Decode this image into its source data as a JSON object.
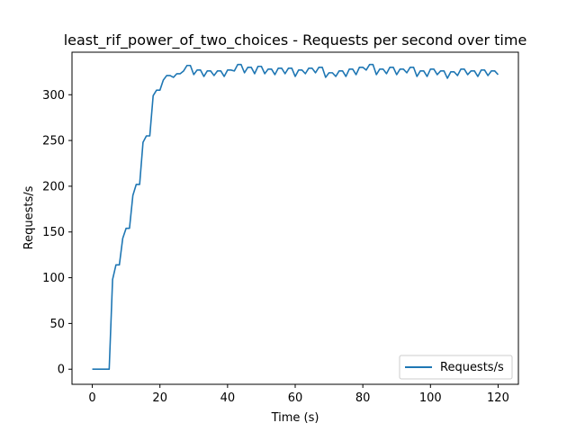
{
  "chart_data": {
    "type": "line",
    "title": "least_rif_power_of_two_choices - Requests per second over time",
    "xlabel": "Time (s)",
    "ylabel": "Requests/s",
    "xlim": [
      -6,
      126
    ],
    "ylim": [
      -16.5,
      346.5
    ],
    "xticks": [
      0,
      20,
      40,
      60,
      80,
      100,
      120
    ],
    "yticks": [
      0,
      50,
      100,
      150,
      200,
      250,
      300
    ],
    "grid": false,
    "legend_position": "lower right",
    "series": [
      {
        "name": "Requests/s",
        "color": "#1f77b4",
        "x": [
          0,
          1,
          2,
          3,
          4,
          5,
          6,
          7,
          8,
          9,
          10,
          11,
          12,
          13,
          14,
          15,
          16,
          17,
          18,
          19,
          20,
          21,
          22,
          23,
          24,
          25,
          26,
          27,
          28,
          29,
          30,
          31,
          32,
          33,
          34,
          35,
          36,
          37,
          38,
          39,
          40,
          41,
          42,
          43,
          44,
          45,
          46,
          47,
          48,
          49,
          50,
          51,
          52,
          53,
          54,
          55,
          56,
          57,
          58,
          59,
          60,
          61,
          62,
          63,
          64,
          65,
          66,
          67,
          68,
          69,
          70,
          71,
          72,
          73,
          74,
          75,
          76,
          77,
          78,
          79,
          80,
          81,
          82,
          83,
          84,
          85,
          86,
          87,
          88,
          89,
          90,
          91,
          92,
          93,
          94,
          95,
          96,
          97,
          98,
          99,
          100,
          101,
          102,
          103,
          104,
          105,
          106,
          107,
          108,
          109,
          110,
          111,
          112,
          113,
          114,
          115,
          116,
          117,
          118,
          119,
          120
        ],
        "y": [
          0,
          0,
          0,
          0,
          0,
          0,
          98,
          114,
          114,
          143,
          154,
          154,
          190,
          202,
          202,
          248,
          255,
          255,
          299,
          305,
          305,
          316,
          321,
          321,
          319,
          323,
          323,
          326,
          332,
          332,
          322,
          327,
          327,
          320,
          326,
          326,
          321,
          326,
          326,
          320,
          327,
          327,
          326,
          333,
          333,
          324,
          330,
          330,
          323,
          331,
          331,
          323,
          328,
          328,
          322,
          329,
          329,
          323,
          329,
          329,
          320,
          327,
          327,
          323,
          329,
          329,
          324,
          330,
          330,
          319,
          324,
          324,
          320,
          326,
          326,
          320,
          328,
          328,
          322,
          330,
          330,
          327,
          333,
          333,
          322,
          328,
          328,
          323,
          330,
          330,
          322,
          328,
          328,
          324,
          330,
          330,
          320,
          326,
          326,
          320,
          328,
          328,
          322,
          326,
          326,
          318,
          325,
          325,
          321,
          328,
          328,
          322,
          326,
          326,
          320,
          327,
          327,
          321,
          326,
          326,
          322
        ]
      }
    ]
  }
}
